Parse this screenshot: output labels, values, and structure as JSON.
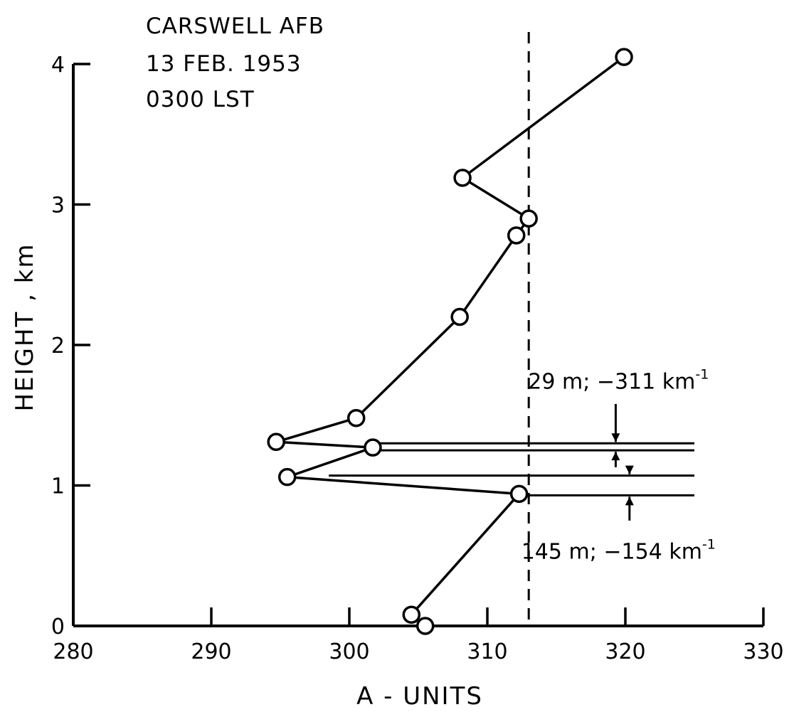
{
  "chart_data": {
    "type": "line",
    "header_lines": [
      "CARSWELL  AFB",
      "13  FEB.   1953",
      "0300  LST"
    ],
    "xlabel": "A - UNITS",
    "ylabel": "HEIGHT , km",
    "xlim": [
      280,
      330
    ],
    "ylim": [
      0,
      4
    ],
    "x_ticks": [
      280,
      290,
      300,
      310,
      320,
      330
    ],
    "y_ticks": [
      0,
      1,
      2,
      3,
      4
    ],
    "grid": false,
    "series": [
      {
        "x": [
          305.5,
          304.5,
          312.3,
          295.5,
          301.7,
          294.7,
          300.5,
          308.0,
          312.1,
          313.0,
          308.2,
          319.9
        ],
        "y": [
          0.0,
          0.08,
          0.94,
          1.06,
          1.27,
          1.31,
          1.48,
          2.2,
          2.78,
          2.9,
          3.19,
          4.05
        ]
      }
    ],
    "reference_line": {
      "x": 313,
      "style": "dashed"
    },
    "layer_lines": [
      {
        "y": 1.3,
        "x_start": 301.7,
        "x_end": 325
      },
      {
        "y": 1.25,
        "x_start": 301.7,
        "x_end": 325
      },
      {
        "y": 1.07,
        "x_start": 298.0,
        "x_end": 325
      },
      {
        "y": 0.93,
        "x_start": 312.3,
        "x_end": 325
      }
    ],
    "annotations": [
      {
        "text": "29 m;  −311  km",
        "sup": "-1",
        "x": 319.5,
        "y": 1.74
      },
      {
        "text": "145  m;  −154  km",
        "sup": "-1",
        "x": 319.5,
        "y": 0.53
      }
    ]
  }
}
